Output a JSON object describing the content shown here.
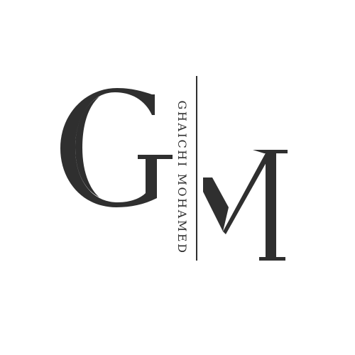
{
  "logo": {
    "monogram_letters": [
      "G",
      "M"
    ],
    "name": "GHAICHI MOHAMED",
    "ink_color": "#2f2f2f",
    "background_color": "#ffffff"
  }
}
